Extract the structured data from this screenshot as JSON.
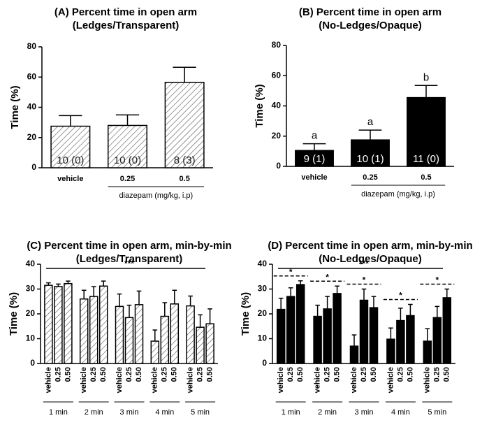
{
  "chart_data": [
    {
      "type": "bar",
      "title": "(A) Percent time in open arm",
      "subtitle": "(Ledges/Transparent)",
      "ylabel": "Time (%)",
      "xlabel": "diazepam (mg/kg, i.p)",
      "categories": [
        "vehicle",
        "0.25",
        "0.5"
      ],
      "values": [
        27.5,
        28,
        56.5
      ],
      "errors": [
        7,
        7,
        10
      ],
      "bar_annotations": [
        "10 (0)",
        "10 (0)",
        "8 (3)"
      ],
      "color": "#ffffff",
      "hatch": true,
      "ylim": [
        0,
        80
      ],
      "yticks": [
        0,
        20,
        40,
        60,
        80
      ]
    },
    {
      "type": "bar",
      "title": "(B) Percent time in open arm",
      "subtitle": "(No-Ledges/Opaque)",
      "ylabel": "Time (%)",
      "xlabel": "diazepam (mg/kg, i.p)",
      "categories": [
        "vehicle",
        "0.25",
        "0.5"
      ],
      "values": [
        10.5,
        17.5,
        45.5
      ],
      "errors": [
        4.5,
        6.5,
        8
      ],
      "bar_annotations": [
        "9 (1)",
        "10 (1)",
        "11 (0)"
      ],
      "letters": [
        "a",
        "a",
        "b"
      ],
      "color": "#000000",
      "hatch": false,
      "ylim": [
        0,
        80
      ],
      "yticks": [
        0,
        20,
        40,
        60,
        80
      ]
    },
    {
      "type": "grouped_bar",
      "title": "(C) Percent time in open arm, min-by-min",
      "subtitle": "(Ledges/Transparent)",
      "ylabel": "Time (%)",
      "categories": [
        "1 min",
        "2 min",
        "3 min",
        "4 min",
        "5 min"
      ],
      "series": [
        {
          "name": "vehicle",
          "values": [
            31.5,
            26,
            23,
            9,
            23.2
          ],
          "errors": [
            1,
            3.5,
            5,
            4.5,
            4
          ]
        },
        {
          "name": "0.25",
          "values": [
            31,
            27,
            18.5,
            19,
            14.6
          ],
          "errors": [
            1,
            4,
            5,
            5.5,
            5
          ]
        },
        {
          "name": "0.50",
          "values": [
            32.2,
            31.2,
            23.7,
            24,
            16
          ],
          "errors": [
            1,
            2,
            5.5,
            5.5,
            6
          ]
        }
      ],
      "annotation": "***",
      "color": "#ffffff",
      "hatch": true,
      "ylim": [
        0,
        40
      ],
      "yticks": [
        0,
        10,
        20,
        30,
        40
      ]
    },
    {
      "type": "grouped_bar",
      "title": "(D) Percent time in open arm, min-by-min",
      "subtitle": "(No-Ledges/Opaque)",
      "ylabel": "Time (%)",
      "categories": [
        "1 min",
        "2 min",
        "3 min",
        "4 min",
        "5 min"
      ],
      "series": [
        {
          "name": "vehicle",
          "values": [
            21.8,
            19,
            7,
            9.8,
            9
          ],
          "errors": [
            4.5,
            4.5,
            4.5,
            4.5,
            5
          ]
        },
        {
          "name": "0.25",
          "values": [
            27,
            22,
            25.5,
            17.3,
            18.5
          ],
          "errors": [
            3.5,
            5,
            4.5,
            5,
            4.5
          ]
        },
        {
          "name": "0.50",
          "values": [
            31.8,
            28.2,
            22.5,
            19.3,
            26.5
          ],
          "errors": [
            1.5,
            3,
            4.5,
            4.5,
            3.5
          ]
        }
      ],
      "annotation": "***",
      "group_annotations": [
        "*",
        "*",
        "*",
        "*",
        "*"
      ],
      "color": "#000000",
      "hatch": false,
      "ylim": [
        0,
        40
      ],
      "yticks": [
        0,
        10,
        20,
        30,
        40
      ]
    }
  ]
}
